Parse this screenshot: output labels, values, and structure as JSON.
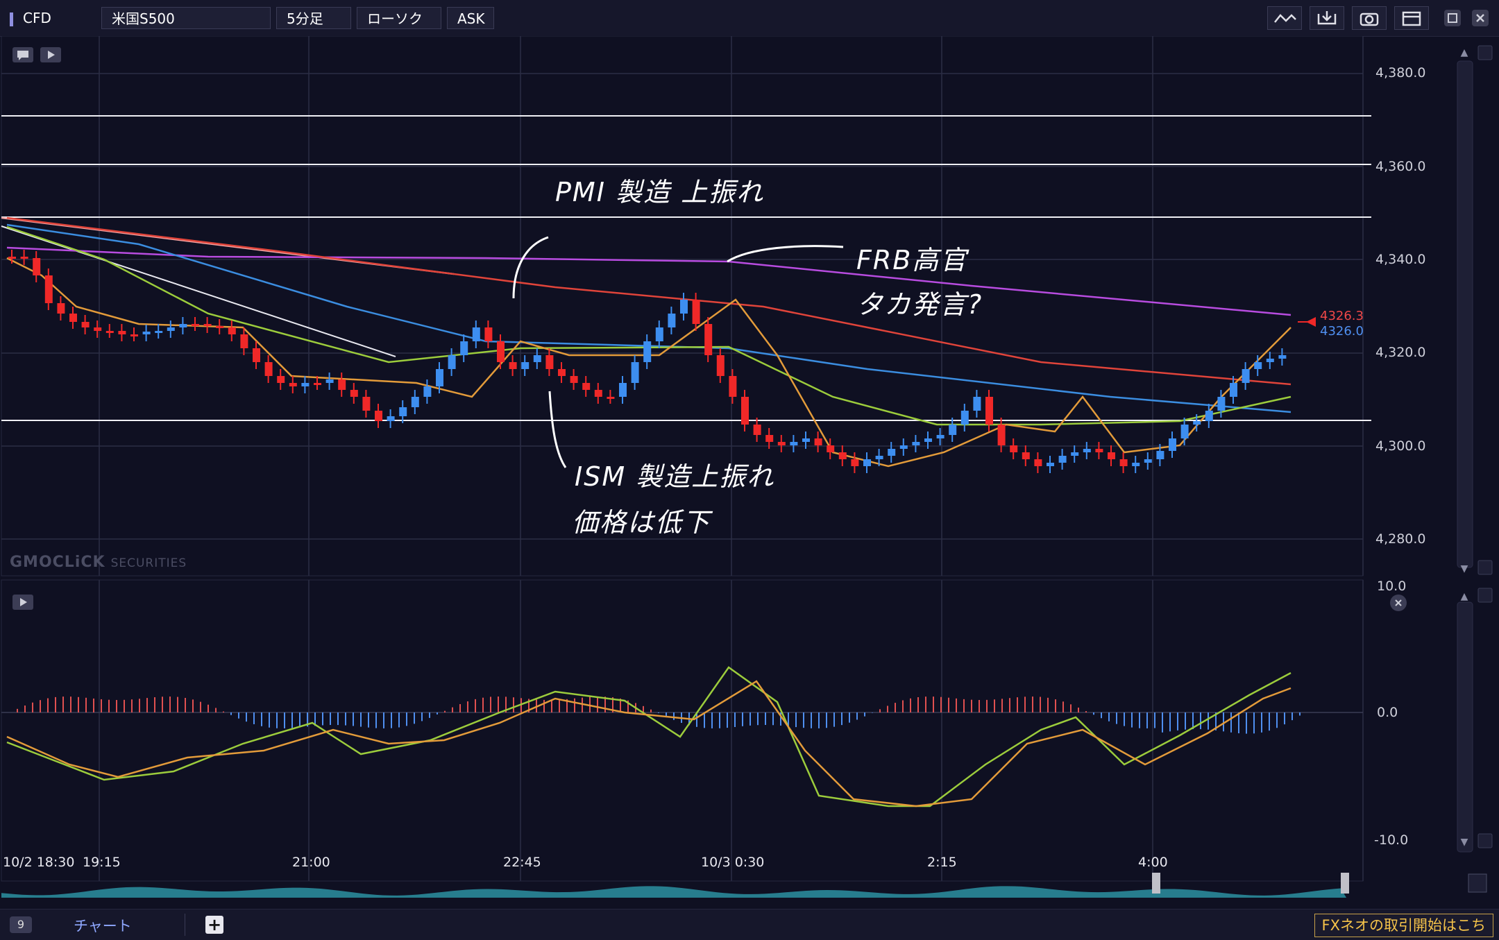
{
  "toolbar": {
    "product_type": "CFD",
    "symbol": "米国S500",
    "timeframe": "5分足",
    "chart_style": "ローソク",
    "price_type": "ASK"
  },
  "price_axis": {
    "labels": [
      "4,380.0",
      "4,360.0",
      "4,340.0",
      "4,320.0",
      "4,300.0",
      "4,280.0"
    ],
    "last_red": "4326.3",
    "last_blue": "4326.0"
  },
  "oscillator_axis": {
    "labels": [
      "10.0",
      "0.0",
      "-10.0"
    ]
  },
  "time_axis": {
    "labels": [
      "10/2 18:30",
      "19:15",
      "21:00",
      "22:45",
      "10/3 0:30",
      "2:15",
      "4:00"
    ]
  },
  "watermark": {
    "brand": "GMOCLiCK",
    "suffix": "SECURITIES"
  },
  "annotations": {
    "pmi": "PMI 製造 上振れ",
    "frb_line1": "FRB高官",
    "frb_line2": "タカ発言?",
    "ism_line1": "ISM 製造上振れ",
    "ism_line2": "価格は低下"
  },
  "bottom_bar": {
    "tab_count": "9",
    "tab_label": "チャート",
    "promo": "FXネオの取引開始はこち"
  },
  "colors": {
    "background": "#0f1022",
    "bull": "#3d8ef0",
    "bear": "#f02828",
    "ma_short": "#e39b3a",
    "ma_mid": "#9ccc3c",
    "ma_long_blue": "#3b8de0",
    "ma_long_red": "#e0443a",
    "ma_purple": "#b84ce0",
    "minimap": "#2a8a9a"
  },
  "icons": [
    "comment-icon",
    "play-icon",
    "line-tool-icon",
    "download-icon",
    "camera-icon",
    "window-icon",
    "maximize-icon",
    "close-icon"
  ]
}
